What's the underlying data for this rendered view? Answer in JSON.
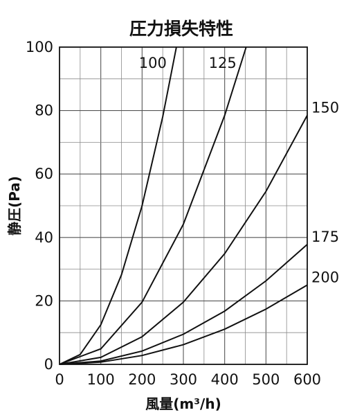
{
  "chart_data": {
    "type": "line",
    "title": "圧力損失特性",
    "xlabel": "風量(m³/h)",
    "ylabel": "静圧(Pa)",
    "xlim": [
      0,
      600
    ],
    "ylim": [
      0,
      100
    ],
    "x_ticks": [
      "0",
      "100",
      "200",
      "300",
      "400",
      "500",
      "600"
    ],
    "y_ticks": [
      "0",
      "20",
      "40",
      "60",
      "80",
      "100"
    ],
    "grid": true,
    "series": [
      {
        "name": "100",
        "points": [
          [
            0,
            0
          ],
          [
            50,
            3.1
          ],
          [
            100,
            12.5
          ],
          [
            150,
            28.2
          ],
          [
            200,
            50
          ],
          [
            250,
            78.1
          ],
          [
            283,
            100
          ]
        ]
      },
      {
        "name": "125",
        "points": [
          [
            0,
            0
          ],
          [
            100,
            4.9
          ],
          [
            200,
            19.6
          ],
          [
            300,
            44.2
          ],
          [
            400,
            78.5
          ],
          [
            452,
            100
          ]
        ]
      },
      {
        "name": "150",
        "points": [
          [
            0,
            0
          ],
          [
            100,
            2.2
          ],
          [
            200,
            8.7
          ],
          [
            300,
            19.6
          ],
          [
            400,
            34.9
          ],
          [
            500,
            54.5
          ],
          [
            600,
            78.5
          ]
        ]
      },
      {
        "name": "175",
        "points": [
          [
            0,
            0
          ],
          [
            100,
            1.05
          ],
          [
            200,
            4.2
          ],
          [
            300,
            9.5
          ],
          [
            400,
            16.8
          ],
          [
            500,
            26.3
          ],
          [
            600,
            37.8
          ]
        ]
      },
      {
        "name": "200",
        "points": [
          [
            0,
            0
          ],
          [
            100,
            0.69
          ],
          [
            200,
            2.8
          ],
          [
            300,
            6.2
          ],
          [
            400,
            11.1
          ],
          [
            500,
            17.4
          ],
          [
            600,
            25
          ]
        ]
      }
    ]
  }
}
